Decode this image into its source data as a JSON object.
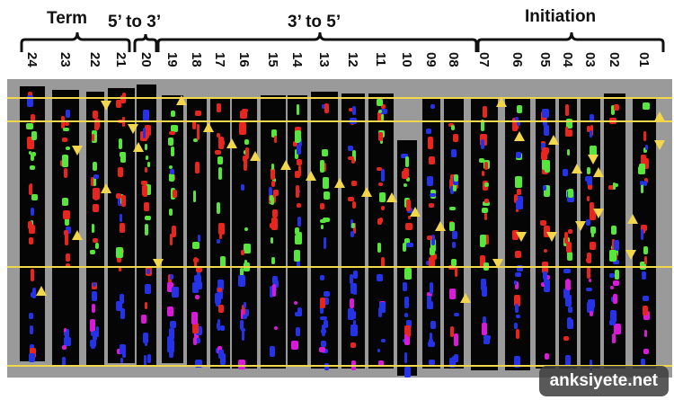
{
  "headers": {
    "term": "Term",
    "five_to_three": "5’ to 3’",
    "three_to_five": "3’ to 5’",
    "initiation": "Initiation"
  },
  "lanes": [
    "24",
    "23",
    "22",
    "21",
    "20",
    "19",
    "18",
    "17",
    "16",
    "15",
    "14",
    "13",
    "12",
    "11",
    "10",
    "09",
    "08",
    "07",
    "06",
    "05",
    "04",
    "03",
    "02",
    "01"
  ],
  "watermark": "anksiyete.net",
  "colors": {
    "background": "#ffffff",
    "panel": "#9a9a9a",
    "lane": "#050505",
    "marker": "#f2d64b",
    "red": "#e8261e",
    "green": "#57e63b",
    "blue": "#2433e8",
    "magenta": "#d91ad9"
  }
}
